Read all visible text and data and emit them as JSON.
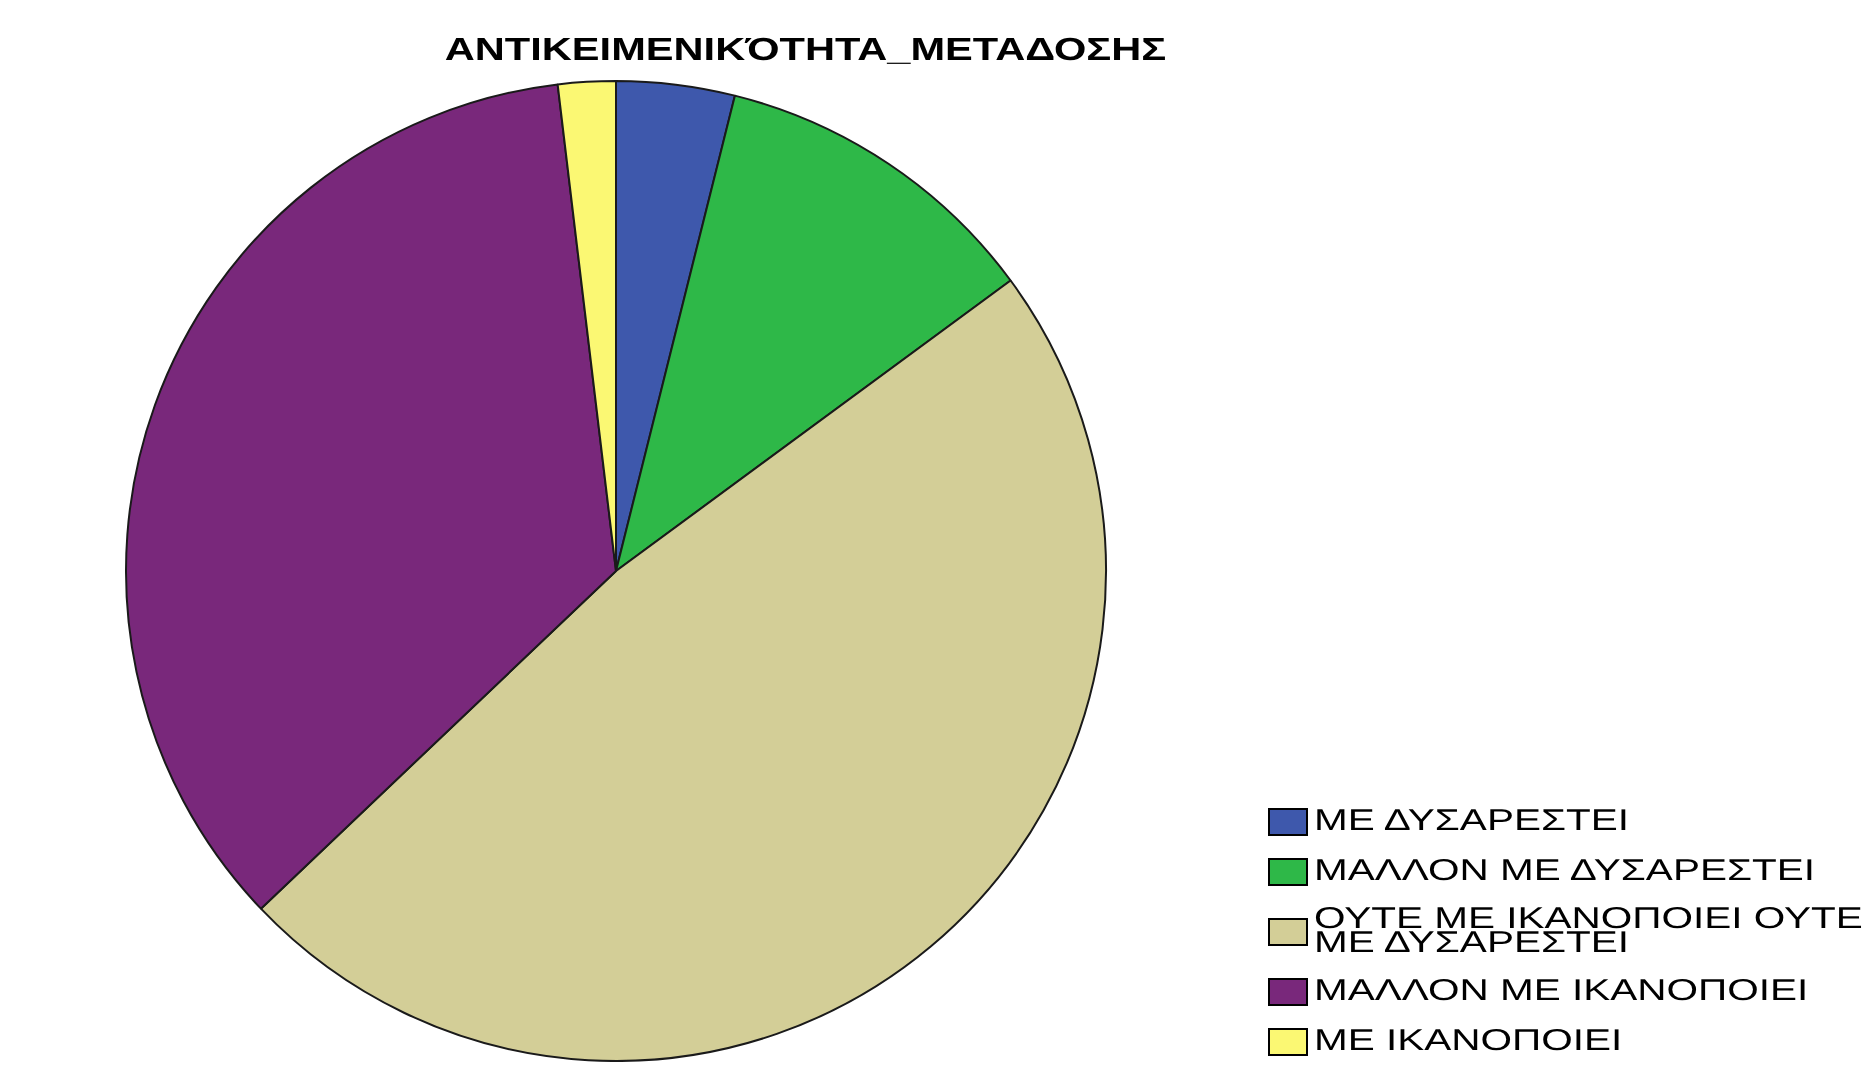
{
  "chart_data": {
    "type": "pie",
    "title": "ΑΝΤΙΚΕΙΜΕΝΙΚΌΤΗΤΑ_ΜΕΤΑΔΟΣΗΣ",
    "categories": [
      "ΜΕ ΔΥΣΑΡΕΣΤΕΙ",
      "ΜΑΛΛΟΝ ΜΕ ΔΥΣΑΡΕΣΤΕΙ",
      "ΟΥΤΕ ΜΕ ΙΚΑΝΟΠΟΙΕΙ ΟΥΤΕ ΜΕ ΔΥΣΑΡΕΣΤΕΙ",
      "ΜΑΛΛΟΝ ΜΕ ΙΚΑΝΟΠΟΙΕΙ",
      "ΜΕ ΙΚΑΝΟΠΟΙΕΙ"
    ],
    "values": [
      3.9,
      11.0,
      48.0,
      35.2,
      1.9
    ],
    "colors": [
      "#3e58ac",
      "#2eb848",
      "#d3ce97",
      "#79287b",
      "#fbf873"
    ],
    "legend": "bottom right"
  }
}
